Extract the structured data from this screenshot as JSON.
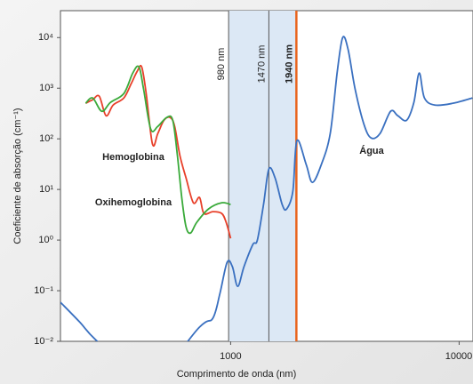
{
  "chart_data": {
    "type": "line",
    "xlabel": "Comprimento de onda (nm)",
    "ylabel": "Coeficiente de absorção (cm⁻¹)",
    "xscale": "log",
    "yscale": "log",
    "xlim": [
      180,
      11500
    ],
    "ylim": [
      0.01,
      34000
    ],
    "xticks": [
      1000,
      10000
    ],
    "yticks": [
      {
        "value": 0.01,
        "label": "10⁻²"
      },
      {
        "value": 0.1,
        "label": "10⁻¹"
      },
      {
        "value": 1,
        "label": "10⁰"
      },
      {
        "value": 10,
        "label": "10¹"
      },
      {
        "value": 100,
        "label": "10²"
      },
      {
        "value": 1000,
        "label": "10³"
      },
      {
        "value": 10000,
        "label": "10⁴"
      }
    ],
    "band": {
      "x": [
        980,
        1940
      ],
      "color": "#dce8f5"
    },
    "vlines": [
      {
        "x": 980,
        "label": "980 nm",
        "color": "#555555"
      },
      {
        "x": 1470,
        "label": "1470 nm",
        "color": "#555555"
      },
      {
        "x": 1940,
        "label": "1940 nm",
        "color": "#e8651f"
      }
    ],
    "series": [
      {
        "name": "Água",
        "color": "#3a70c0",
        "x": [
          180,
          218,
          261,
          427,
          731,
          836,
          898,
          965,
          1018,
          1074,
          1144,
          1251,
          1309,
          1393,
          1470,
          1565,
          1681,
          1758,
          1872,
          1950,
          2142,
          2280,
          2494,
          2728,
          2930,
          3093,
          3264,
          3506,
          3836,
          4119,
          4505,
          5014,
          5390,
          5893,
          6337,
          6687,
          7051,
          7852,
          9396,
          11430
        ],
        "values": [
          0.059,
          0.0243,
          0.01,
          0.00156,
          0.0191,
          0.0286,
          0.0885,
          0.364,
          0.298,
          0.122,
          0.298,
          0.817,
          1.0,
          5.04,
          25.3,
          16.9,
          5.04,
          4.11,
          9.23,
          92.3,
          31.0,
          13.8,
          31.0,
          127,
          2154,
          10000,
          5916,
          959,
          191,
          104,
          127,
          350,
          286,
          233,
          524,
          1988,
          641,
          464,
          504,
          641
        ]
      },
      {
        "name": "Hemoglobina",
        "color": "#e8402a",
        "x": [
          232,
          249,
          266,
          285,
          306,
          341,
          367,
          390,
          408,
          427,
          455,
          480,
          511,
          544,
          569,
          600,
          638,
          687,
          731,
          764,
          836,
          914,
          956,
          1000
        ],
        "values": [
          504,
          592,
          695,
          286,
          464,
          641,
          1225,
          2154,
          2636,
          785,
          78.5,
          127,
          233,
          264,
          176,
          46.4,
          16.9,
          5.45,
          6.95,
          3.36,
          3.64,
          3.36,
          2.24,
          1.08
        ]
      },
      {
        "name": "Oxihemoglobina",
        "color": "#3aaa3a",
        "x": [
          232,
          249,
          273,
          298,
          341,
          373,
          397,
          416,
          447,
          480,
          525,
          558,
          585,
          611,
          638,
          668,
          711,
          800,
          914,
          1000
        ],
        "values": [
          504,
          641,
          350,
          524,
          785,
          1988,
          2636,
          959,
          156,
          176,
          264,
          233,
          46.4,
          6.95,
          1.83,
          1.38,
          2.24,
          4.11,
          5.45,
          5.04
        ]
      }
    ]
  }
}
